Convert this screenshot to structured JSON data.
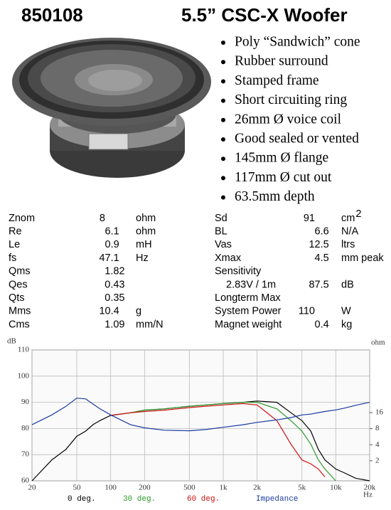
{
  "header": {
    "model": "850108",
    "title": "5.5” CSC-X Woofer"
  },
  "bullets": [
    "Poly “Sandwich” cone",
    "Rubber surround",
    "Stamped frame",
    "Short circuiting ring",
    "26mm Ø voice coil",
    "Good sealed or vented",
    "145mm Ø flange",
    "117mm Ø cut out",
    "63.5mm depth"
  ],
  "specs": {
    "left": [
      {
        "name": "Znom",
        "value": "8",
        "unit": "ohm"
      },
      {
        "name": "Re",
        "value": "6.1",
        "unit": "ohm"
      },
      {
        "name": "Le",
        "value": "0.9",
        "unit": "mH"
      },
      {
        "name": "fs",
        "value": "47.1",
        "unit": "Hz"
      },
      {
        "name": "Qms",
        "value": "1.82"
      },
      {
        "name": "Qes",
        "value": "0.43"
      },
      {
        "name": "Qts",
        "value": "0.35"
      },
      {
        "name": "Mms",
        "value": "10.4",
        "unit": "g"
      },
      {
        "name": "Cms",
        "value": "1.09",
        "unit": "mm/N"
      }
    ],
    "right": [
      {
        "name": "Sd",
        "value": "91",
        "unit": "cm",
        "unit_sup": "2"
      },
      {
        "name": "BL",
        "value": "6.6",
        "unit": "N/A"
      },
      {
        "name": "Vas",
        "value": "12.5",
        "unit": "ltrs"
      },
      {
        "name": "Xmax",
        "value": "4.5",
        "unit": "mm peak"
      },
      {
        "name": "Sensitivity"
      },
      {
        "name": "2.83V / 1m",
        "value": "87.5",
        "unit": "dB",
        "indent": true
      },
      {
        "name": "Longterm Max"
      },
      {
        "name": "System Power",
        "value": "110",
        "unit": "W"
      },
      {
        "name": "Magnet weight",
        "value": "0.4",
        "unit": "kg"
      }
    ]
  },
  "chart_data": {
    "type": "line",
    "xlabel": "Hz",
    "ylabel": "dB",
    "y2label": "ohm",
    "xscale": "log",
    "y2scale": "log",
    "grid": true,
    "x": [
      20,
      30,
      40,
      50,
      60,
      70,
      80,
      100,
      150,
      200,
      300,
      500,
      700,
      1000,
      1500,
      2000,
      3000,
      4000,
      5000,
      6000,
      7000,
      8000,
      10000,
      12000,
      15000,
      20000
    ],
    "xlim": [
      20,
      20000
    ],
    "xticks": [
      20,
      50,
      100,
      200,
      500,
      {
        "value": 1000,
        "label": "1k"
      },
      {
        "value": 2000,
        "label": "2k"
      },
      {
        "value": 5000,
        "label": "5k"
      },
      {
        "value": 10000,
        "label": "10k"
      },
      {
        "value": 20000,
        "label": "20k"
      }
    ],
    "ylim": [
      60,
      110
    ],
    "yticks": [
      60,
      70,
      80,
      90,
      100,
      110
    ],
    "y2lim": [
      0.84,
      240
    ],
    "y2ticks": [
      2,
      4,
      8,
      16
    ],
    "series": [
      {
        "name": "0 deg.",
        "color": "#000000",
        "values": [
          60,
          68,
          72,
          77,
          79,
          81.5,
          83,
          85,
          86,
          87,
          87.5,
          88.5,
          89,
          89.5,
          90,
          90.5,
          90,
          86,
          83,
          79,
          72,
          68,
          64.5,
          63,
          61,
          60
        ]
      },
      {
        "name": "30 deg.",
        "color": "#2a9a2a",
        "values": [
          null,
          null,
          null,
          null,
          null,
          null,
          null,
          85,
          86,
          87,
          87.5,
          88.5,
          89,
          89.5,
          90,
          90,
          87.5,
          83,
          79,
          74,
          68,
          64.5,
          60,
          null,
          null,
          null
        ]
      },
      {
        "name": "60 deg.",
        "color": "#d01010",
        "values": [
          null,
          null,
          null,
          null,
          null,
          null,
          null,
          85,
          86,
          86.5,
          87,
          88,
          88.5,
          89,
          89.5,
          89,
          83,
          74,
          68,
          66.5,
          64.5,
          61.5,
          null,
          null,
          null,
          null
        ]
      },
      {
        "name": "Impedance",
        "color": "#1a3aa0",
        "axis": "y2",
        "values": [
          9.5,
          14.5,
          21,
          30,
          29,
          23,
          19,
          14.5,
          9.5,
          8.3,
          7.5,
          7.3,
          7.7,
          8.5,
          9.5,
          10.5,
          11.7,
          12.9,
          14.5,
          15,
          16,
          16.8,
          18,
          19.5,
          22,
          25
        ]
      }
    ]
  }
}
